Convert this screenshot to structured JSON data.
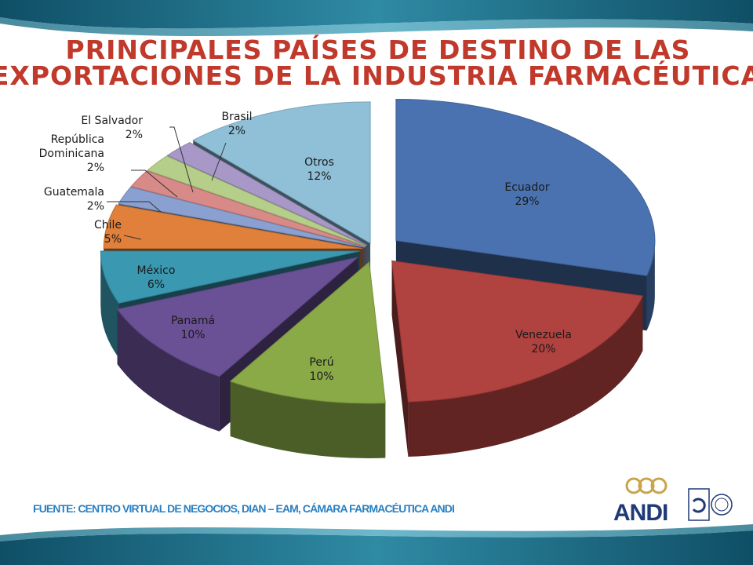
{
  "title": {
    "line1": "PRINCIPALES PAÍSES DE DESTINO DE LAS",
    "line2": "EXPORTACIONES DE LA INDUSTRIA FARMACÉUTICA"
  },
  "source": "FUENTE:  CENTRO VIRTUAL DE NEGOCIOS, DIAN – EAM, CÁMARA FARMACÉUTICA ANDI",
  "logo": {
    "text": "ANDI",
    "brand_color": "#1f3a78",
    "accent_color": "#c8a44a"
  },
  "colors": {
    "title": "#c0392b",
    "source": "#2a7fc0",
    "banner": "#1e6c85"
  },
  "chart_data": {
    "type": "pie",
    "style": "3d-exploded",
    "title": "PRINCIPALES PAÍSES DE DESTINO DE LAS EXPORTACIONES DE LA INDUSTRIA FARMACÉUTICA",
    "legend": "none",
    "slices": [
      {
        "label": "Ecuador",
        "value": 29,
        "value_label": "29%",
        "color": "#4a72b0"
      },
      {
        "label": "Venezuela",
        "value": 20,
        "value_label": "20%",
        "color": "#b04240"
      },
      {
        "label": "Perú",
        "value": 10,
        "value_label": "10%",
        "color": "#8aaa48"
      },
      {
        "label": "Panamá",
        "value": 10,
        "value_label": "10%",
        "color": "#6a5095"
      },
      {
        "label": "México",
        "value": 6,
        "value_label": "6%",
        "color": "#3a98b0"
      },
      {
        "label": "Chile",
        "value": 5,
        "value_label": "5%",
        "color": "#e0803a"
      },
      {
        "label": "Guatemala",
        "value": 2,
        "value_label": "2%",
        "color": "#8aa0d0"
      },
      {
        "label": "República Dominicana",
        "label_lines": [
          "República",
          "Dominicana"
        ],
        "value": 2,
        "value_label": "2%",
        "color": "#d88a88"
      },
      {
        "label": "El Salvador",
        "value": 2,
        "value_label": "2%",
        "color": "#b5cf8a"
      },
      {
        "label": "Brasil",
        "value": 2,
        "value_label": "2%",
        "color": "#a898c8"
      },
      {
        "label": "Otros",
        "value": 12,
        "value_label": "12%",
        "color": "#90c0d8"
      }
    ]
  }
}
